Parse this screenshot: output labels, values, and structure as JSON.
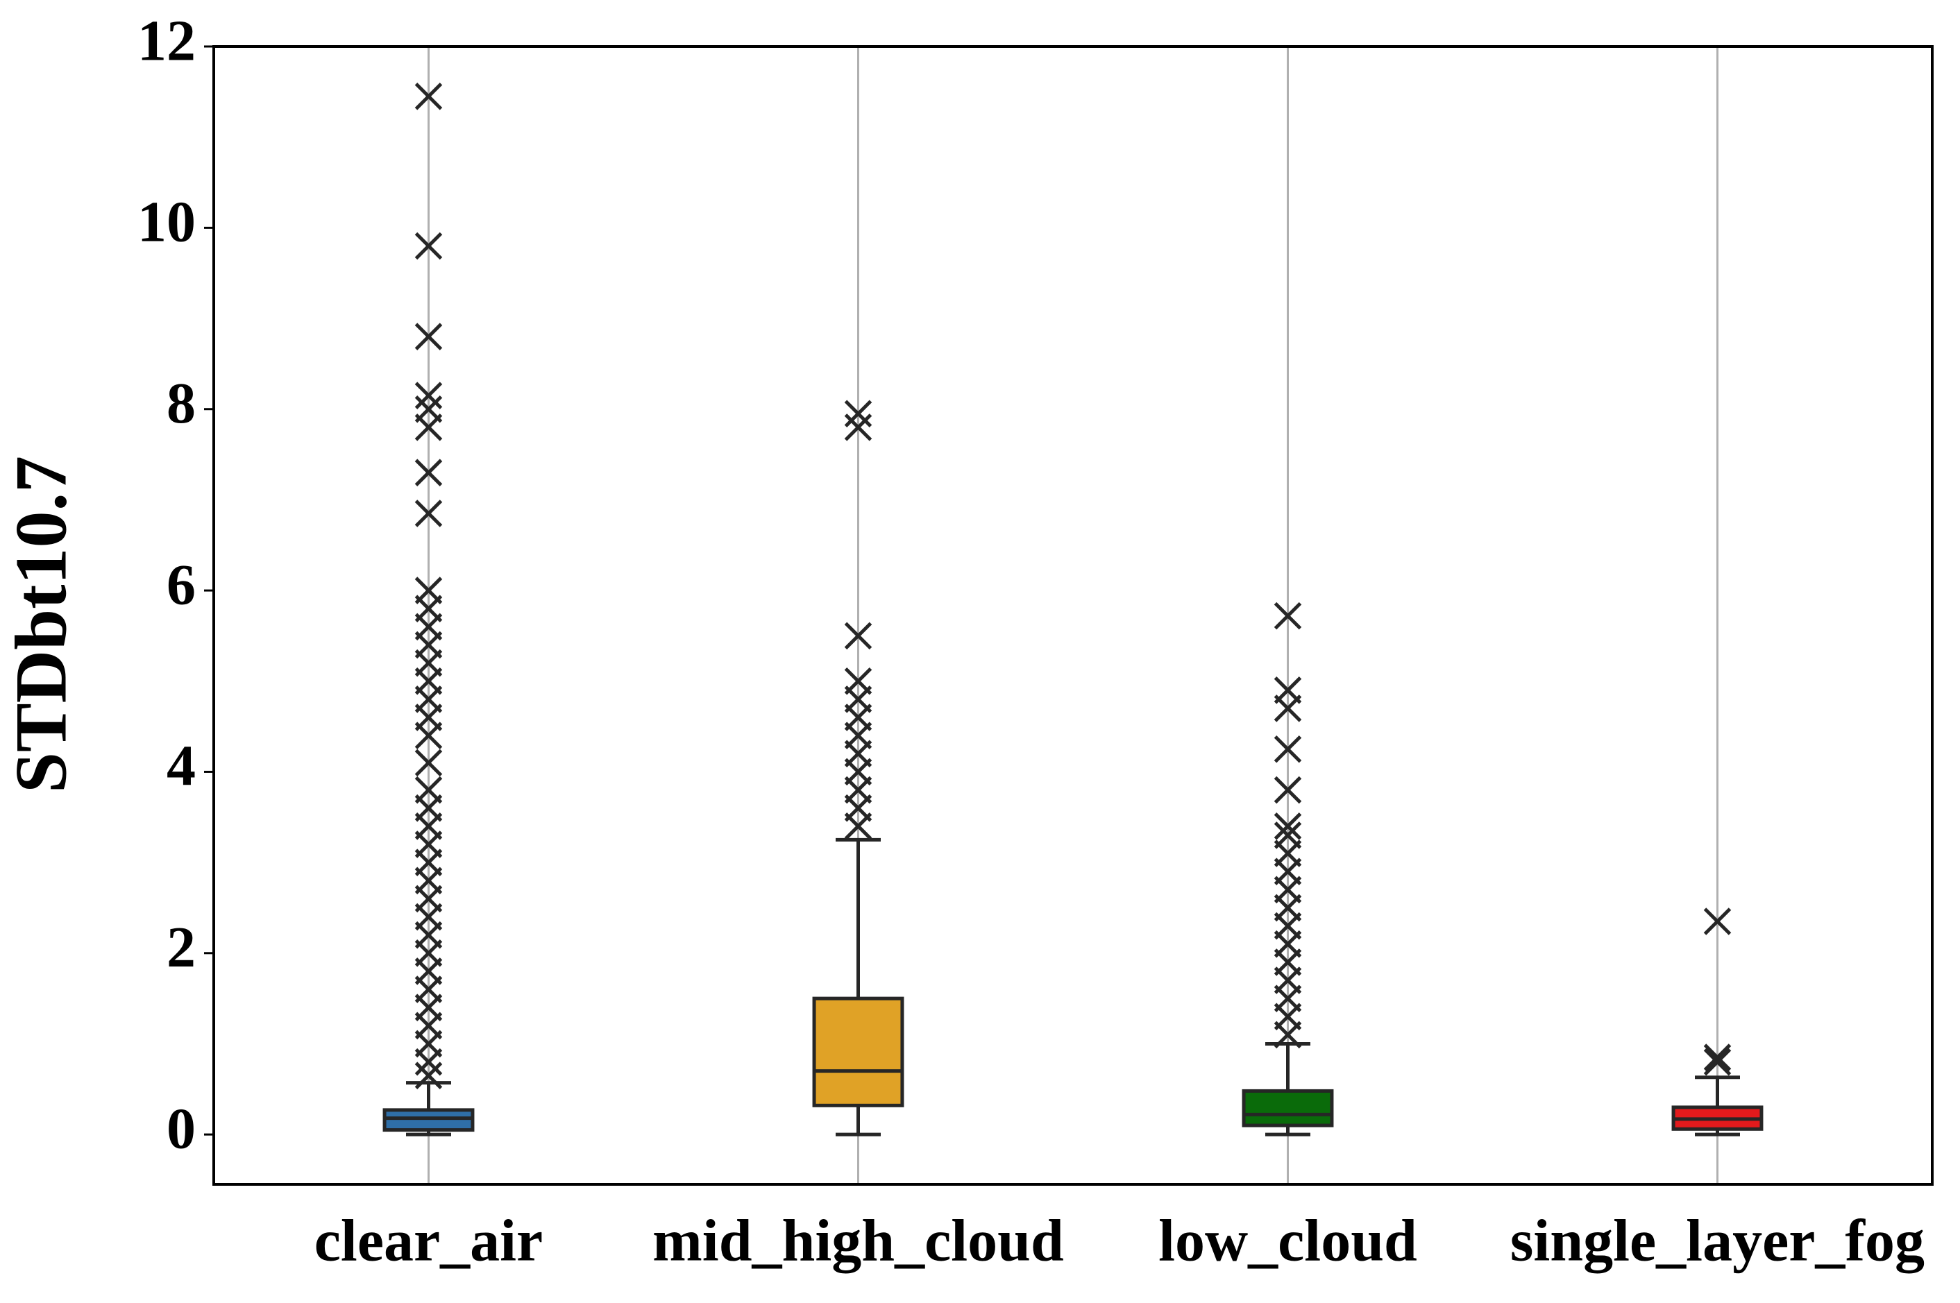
{
  "chart_data": {
    "type": "box",
    "y_label": "STDbt10.7",
    "categories": [
      "clear_air",
      "mid_high_cloud",
      "low_cloud",
      "single_layer_fog"
    ],
    "colors": [
      "#2f6fa8",
      "#e0a226",
      "#0a6b0a",
      "#e31a1c"
    ],
    "boxes": [
      {
        "whislo": 0,
        "q1": 0.05,
        "med": 0.18,
        "q3": 0.27,
        "whishi": 0.57,
        "fliers": [
          11.45,
          9.8,
          8.8,
          8.15,
          8.0,
          7.8,
          7.3,
          6.85,
          6.0,
          5.8,
          5.6,
          5.4,
          5.2,
          5.0,
          4.8,
          4.6,
          4.4,
          4.1,
          3.8,
          3.6,
          3.4,
          3.2,
          3.0,
          2.8,
          2.6,
          2.4,
          2.2,
          2.0,
          1.8,
          1.6,
          1.4,
          1.2,
          1.0,
          0.8,
          0.65
        ]
      },
      {
        "whislo": 0,
        "q1": 0.32,
        "med": 0.7,
        "q3": 1.5,
        "whishi": 3.25,
        "fliers": [
          7.95,
          7.8,
          5.5,
          5.0,
          4.8,
          4.6,
          4.4,
          4.2,
          4.0,
          3.8,
          3.6,
          3.4
        ]
      },
      {
        "whislo": 0,
        "q1": 0.1,
        "med": 0.22,
        "q3": 0.48,
        "whishi": 1.0,
        "fliers": [
          5.72,
          4.9,
          4.7,
          4.25,
          3.8,
          3.4,
          3.3,
          3.1,
          2.9,
          2.7,
          2.5,
          2.3,
          2.1,
          1.9,
          1.7,
          1.5,
          1.3,
          1.1
        ]
      },
      {
        "whislo": 0,
        "q1": 0.06,
        "med": 0.17,
        "q3": 0.3,
        "whishi": 0.63,
        "fliers": [
          2.35,
          0.85,
          0.8
        ]
      }
    ],
    "ylim": [
      -0.55,
      12
    ],
    "yticks": [
      0,
      2,
      4,
      6,
      8,
      10,
      12
    ],
    "grid": "x"
  }
}
